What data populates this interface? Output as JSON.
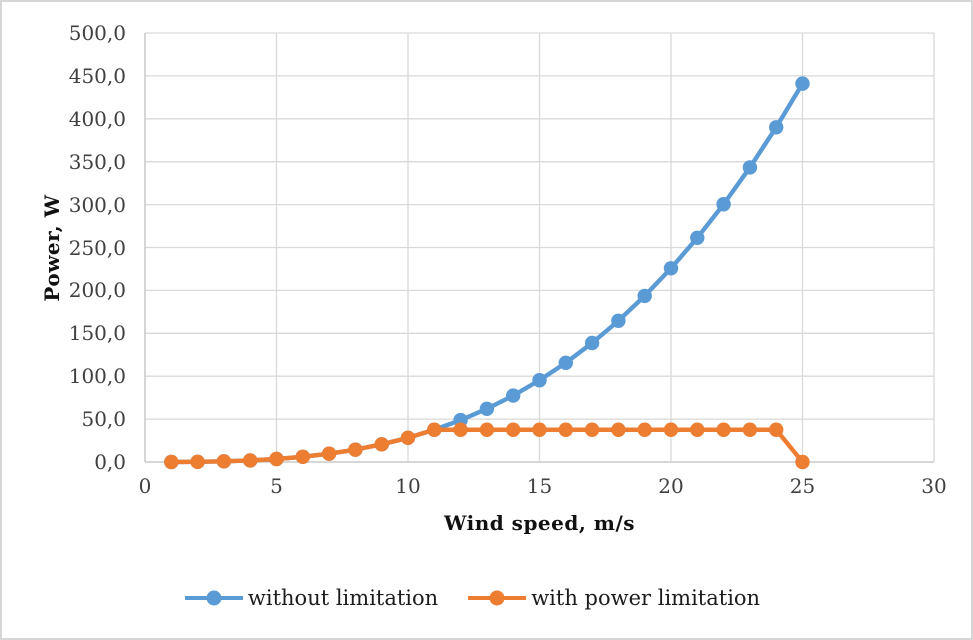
{
  "chart_data": {
    "type": "line",
    "title": "",
    "xlabel": "Wind speed, m/s",
    "ylabel": "Power, W",
    "xlim": [
      0,
      30
    ],
    "ylim": [
      0,
      500
    ],
    "x_ticks": [
      "0",
      "5",
      "10",
      "15",
      "20",
      "25",
      "30"
    ],
    "y_ticks": [
      "0,0",
      "50,0",
      "100,0",
      "150,0",
      "200,0",
      "250,0",
      "300,0",
      "350,0",
      "400,0",
      "450,0",
      "500,0"
    ],
    "grid": true,
    "legend_position": "bottom-center",
    "grid_color": "#d9d9d9",
    "axis_color": "#bfbfbf",
    "tick_label_color": "#404040",
    "x": [
      1,
      2,
      3,
      4,
      5,
      6,
      7,
      8,
      9,
      10,
      11,
      12,
      13,
      14,
      15,
      16,
      17,
      18,
      19,
      20,
      21,
      22,
      23,
      24,
      25
    ],
    "series": [
      {
        "name": "without limitation",
        "color": "#5B9BD5",
        "values": [
          0.0,
          0.2,
          0.8,
          1.8,
          3.5,
          6.1,
          9.7,
          14.4,
          20.6,
          28.2,
          37.6,
          48.8,
          62.0,
          77.4,
          95.3,
          115.6,
          138.7,
          164.6,
          193.6,
          225.8,
          261.3,
          300.4,
          343.3,
          390.1,
          441.0
        ]
      },
      {
        "name": "with power limitation",
        "color": "#ED7D31",
        "values": [
          0.0,
          0.2,
          0.8,
          1.8,
          3.5,
          6.1,
          9.7,
          14.4,
          20.6,
          28.2,
          37.6,
          37.6,
          37.6,
          37.6,
          37.6,
          37.6,
          37.6,
          37.6,
          37.6,
          37.6,
          37.6,
          37.6,
          37.6,
          37.6,
          0.0
        ]
      }
    ]
  }
}
